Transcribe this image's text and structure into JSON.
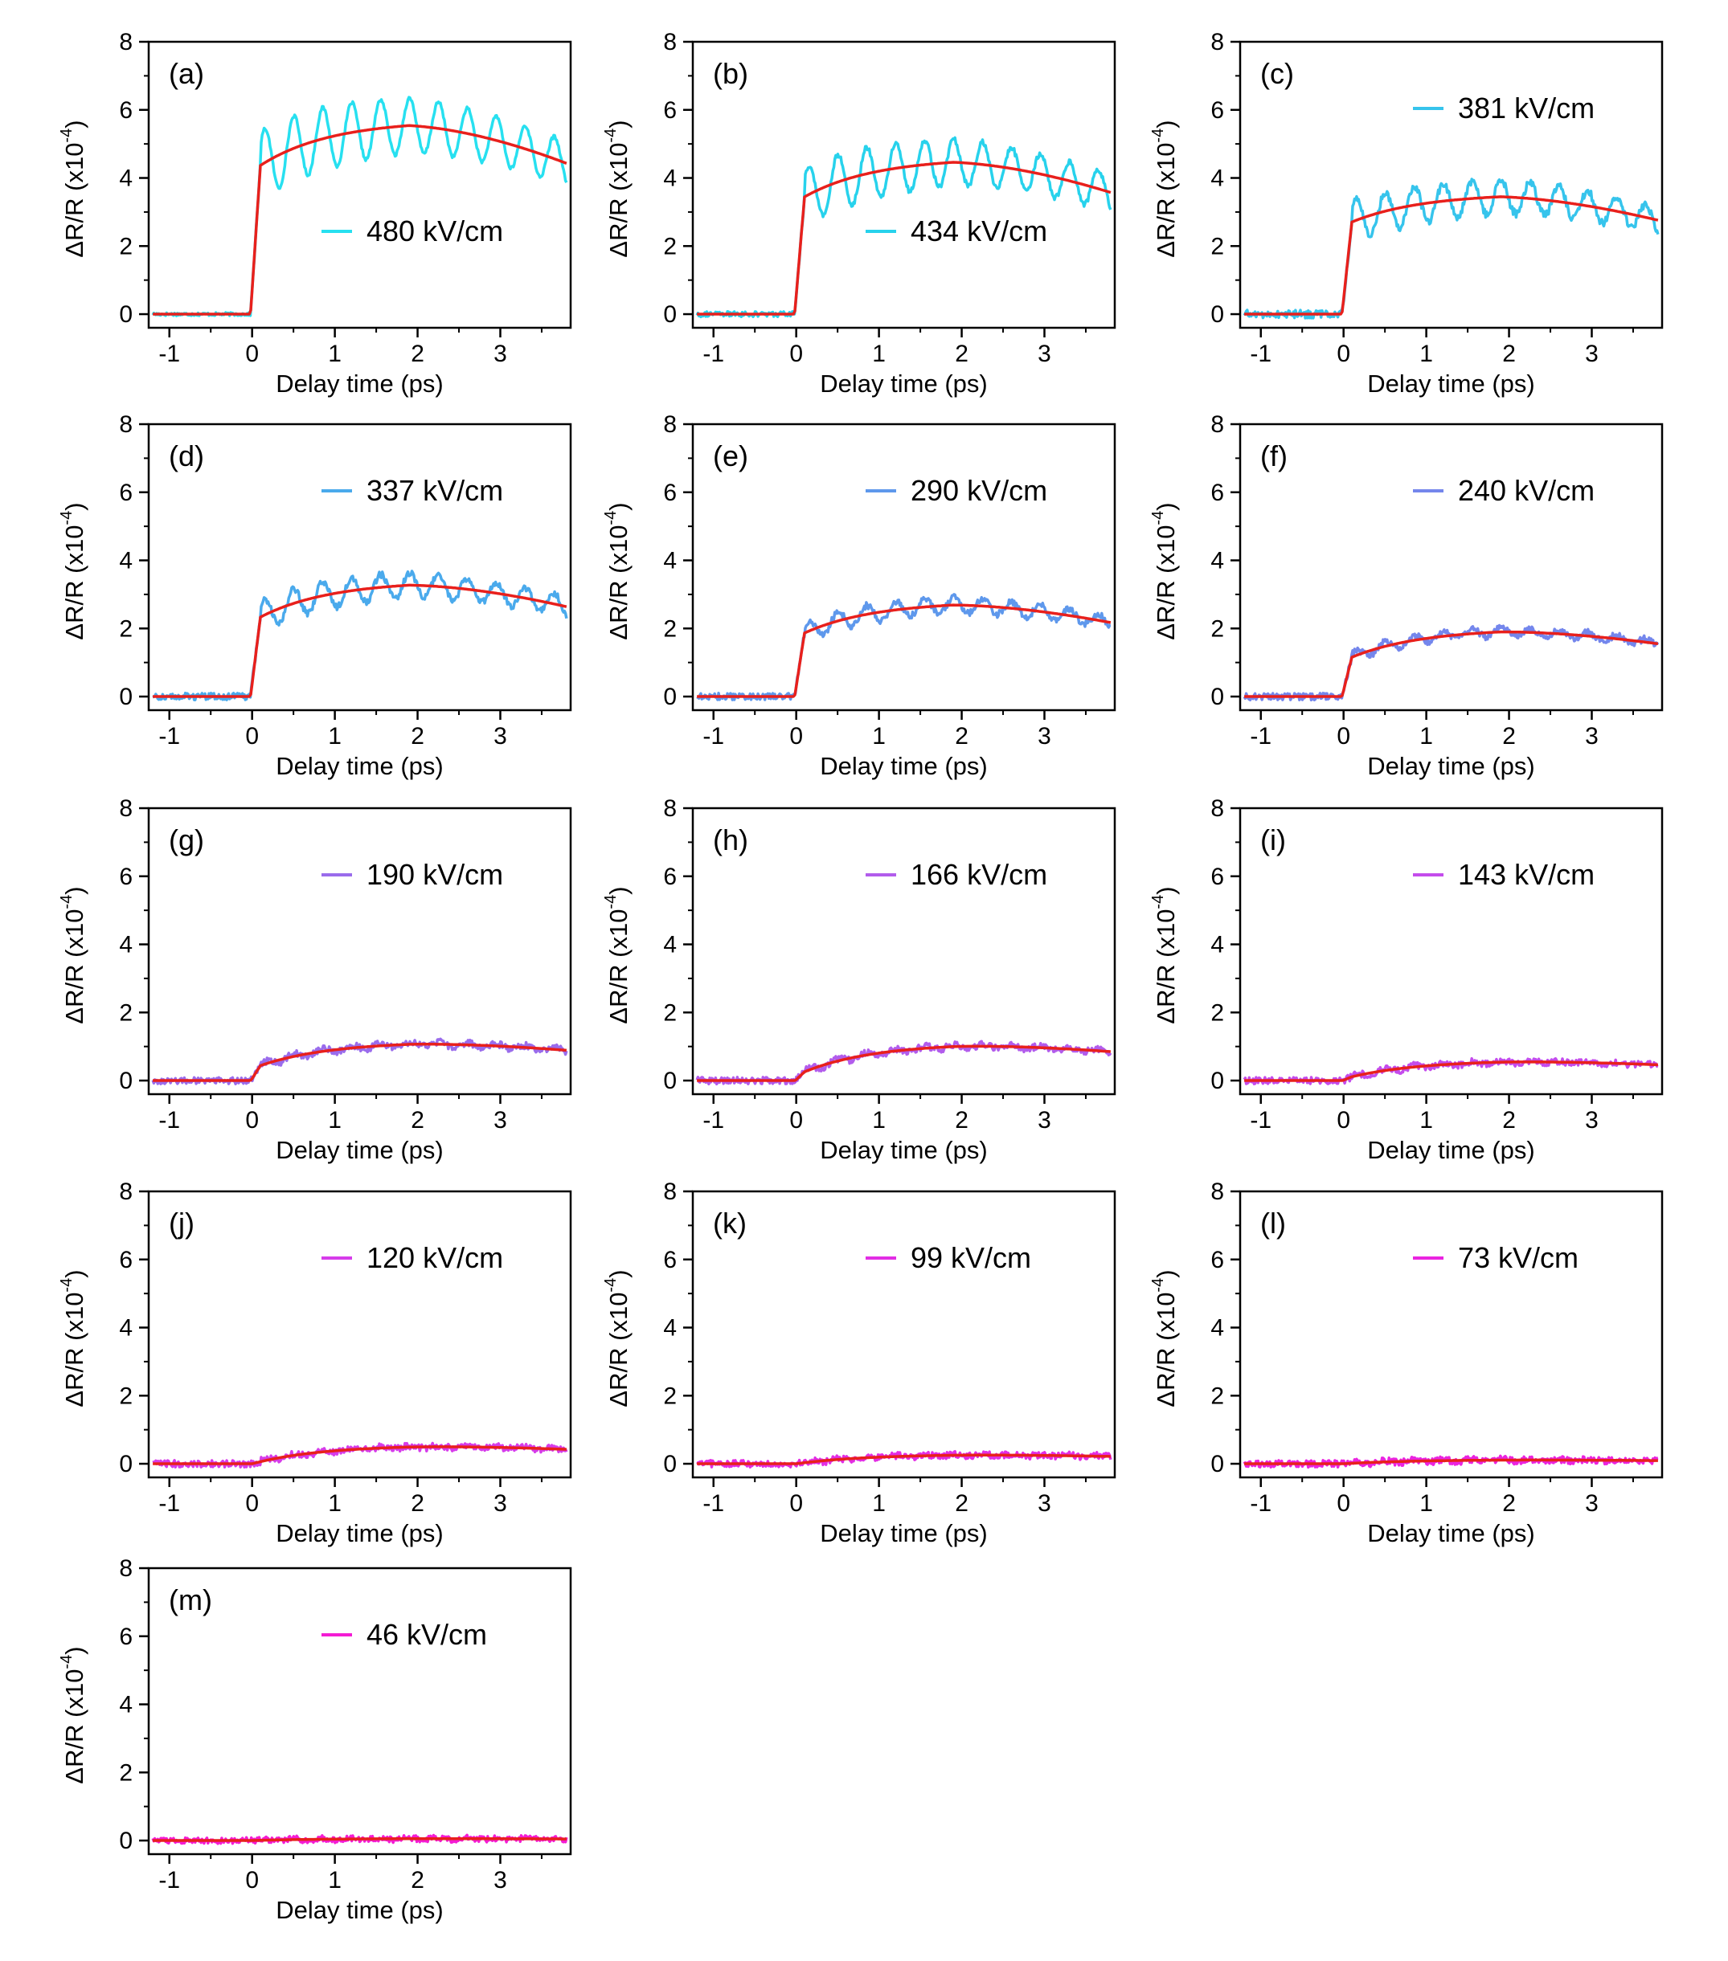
{
  "chart_data": {
    "type": "line",
    "grid": false,
    "fit_color": "#e8201c",
    "panels": [
      {
        "id": "a",
        "label": "(a)",
        "legend": "480 kV/cm",
        "color": "#27e0f0",
        "amplitude": 5.7,
        "jump": 4.2,
        "osc": 1.0,
        "noise": 0.05
      },
      {
        "id": "b",
        "label": "(b)",
        "legend": "434 kV/cm",
        "color": "#27d2ec",
        "amplitude": 4.6,
        "jump": 3.3,
        "osc": 0.85,
        "noise": 0.08
      },
      {
        "id": "c",
        "label": "(c)",
        "legend": "381 kV/cm",
        "color": "#36c4ec",
        "amplitude": 3.55,
        "jump": 2.6,
        "osc": 0.6,
        "noise": 0.12
      },
      {
        "id": "d",
        "label": "(d)",
        "legend": "337 kV/cm",
        "color": "#4aaaec",
        "amplitude": 3.4,
        "jump": 2.2,
        "osc": 0.45,
        "noise": 0.1
      },
      {
        "id": "e",
        "label": "(e)",
        "legend": "290 kV/cm",
        "color": "#5e98ec",
        "amplitude": 2.8,
        "jump": 1.75,
        "osc": 0.28,
        "noise": 0.1
      },
      {
        "id": "f",
        "label": "(f)",
        "legend": "240 kV/cm",
        "color": "#7486ec",
        "amplitude": 2.0,
        "jump": 1.05,
        "osc": 0.14,
        "noise": 0.1
      },
      {
        "id": "g",
        "label": "(g)",
        "legend": "190 kV/cm",
        "color": "#9a6cec",
        "amplitude": 1.15,
        "jump": 0.35,
        "osc": 0.08,
        "noise": 0.1
      },
      {
        "id": "h",
        "label": "(h)",
        "legend": "166 kV/cm",
        "color": "#b25cec",
        "amplitude": 1.1,
        "jump": 0.15,
        "osc": 0.07,
        "noise": 0.1
      },
      {
        "id": "i",
        "label": "(i)",
        "legend": "143 kV/cm",
        "color": "#c44cec",
        "amplitude": 0.6,
        "jump": 0.05,
        "osc": 0.05,
        "noise": 0.1
      },
      {
        "id": "j",
        "label": "(j)",
        "legend": "120 kV/cm",
        "color": "#d63cea",
        "amplitude": 0.55,
        "jump": 0.0,
        "osc": 0.04,
        "noise": 0.1
      },
      {
        "id": "k",
        "label": "(k)",
        "legend": "99 kV/cm",
        "color": "#e22ee4",
        "amplitude": 0.28,
        "jump": 0.0,
        "osc": 0.03,
        "noise": 0.1
      },
      {
        "id": "l",
        "label": "(l)",
        "legend": "73 kV/cm",
        "color": "#ea24e0",
        "amplitude": 0.12,
        "jump": 0.0,
        "osc": 0.03,
        "noise": 0.1
      },
      {
        "id": "m",
        "label": "(m)",
        "legend": "46 kV/cm",
        "color": "#f41cd4",
        "amplitude": 0.06,
        "jump": 0.0,
        "osc": 0.03,
        "noise": 0.09
      }
    ],
    "xlabel": "Delay time (ps)",
    "ylabel_base": "ΔR/R (x10",
    "ylabel_exp": "-4",
    "ylabel_close": ")",
    "xlim": [
      -1.25,
      3.85
    ],
    "ylim": [
      -0.4,
      8.0
    ],
    "xticks": [
      -1,
      0,
      1,
      2,
      3
    ],
    "yticks": [
      0,
      2,
      4,
      6,
      8
    ]
  }
}
